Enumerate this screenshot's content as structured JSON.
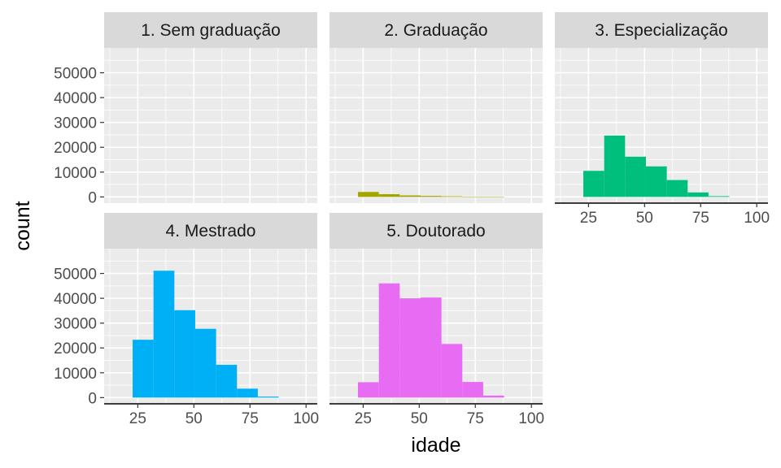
{
  "chart_data": {
    "type": "bar",
    "subtype": "faceted-histogram",
    "xlabel": "idade",
    "ylabel": "count",
    "xlim": [
      10,
      105
    ],
    "ylim": [
      -2500,
      60000
    ],
    "x_ticks": [
      25,
      50,
      75,
      100
    ],
    "y_ticks": [
      0,
      10000,
      20000,
      30000,
      40000,
      50000
    ],
    "bin_edges": [
      22.7,
      32.0,
      41.3,
      50.6,
      59.9,
      69.2,
      78.5,
      87.8
    ],
    "panels": [
      {
        "name": "1. Sem graduação",
        "color": "#F8766D",
        "values": [
          0,
          0,
          0,
          0,
          0,
          0,
          0
        ]
      },
      {
        "name": "2. Graduação",
        "color": "#A3A500",
        "values": [
          2000,
          1100,
          600,
          400,
          250,
          60,
          10
        ]
      },
      {
        "name": "3. Especialização",
        "color": "#00BF7D",
        "values": [
          10500,
          24700,
          16200,
          12300,
          6800,
          1800,
          300
        ]
      },
      {
        "name": "4. Mestrado",
        "color": "#00B0F6",
        "values": [
          23300,
          51100,
          35200,
          27700,
          13200,
          3600,
          400
        ]
      },
      {
        "name": "5. Doutorado",
        "color": "#E76BF3",
        "values": [
          6200,
          46000,
          40000,
          40300,
          21600,
          6300,
          800
        ]
      }
    ]
  }
}
